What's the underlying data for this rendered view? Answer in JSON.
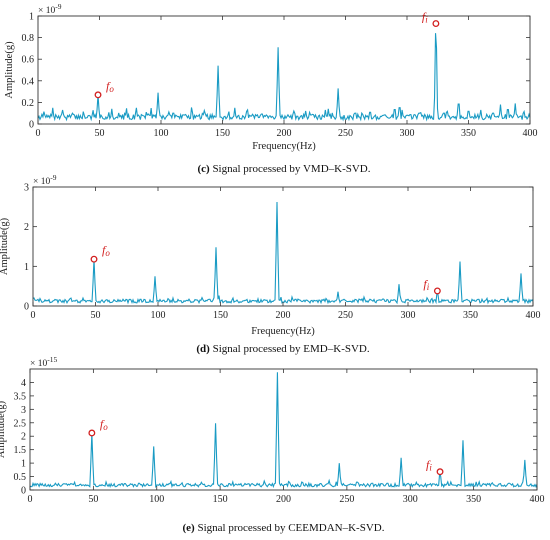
{
  "chart_data": [
    {
      "type": "line",
      "caption_tag": "(c)",
      "caption_text": " Signal processed by VMD–K-SVD.",
      "xlabel": "Frequency(Hz)",
      "ylabel": "Amplitude(g)",
      "exponent_base": "× 10",
      "exponent_power": "-9",
      "xlim": [
        0,
        400
      ],
      "ylim": [
        0,
        1
      ],
      "xticks": [
        0,
        50,
        100,
        150,
        200,
        250,
        300,
        350,
        400
      ],
      "yticks": [
        0,
        0.2,
        0.4,
        0.6,
        0.8,
        1
      ],
      "ytick_labels": [
        "0",
        "0.2",
        "0.4",
        "0.6",
        "0.8",
        "1"
      ],
      "line_color": "#1a9bc4",
      "baseline": 0.04,
      "noise": 0.05,
      "peaks": [
        [
          5,
          0.12
        ],
        [
          12,
          0.15
        ],
        [
          20,
          0.13
        ],
        [
          28,
          0.1
        ],
        [
          37,
          0.12
        ],
        [
          48.8,
          0.27
        ],
        [
          60,
          0.14
        ],
        [
          72,
          0.12
        ],
        [
          80,
          0.15
        ],
        [
          88,
          0.11
        ],
        [
          97.6,
          0.29
        ],
        [
          110,
          0.12
        ],
        [
          118,
          0.1
        ],
        [
          125,
          0.16
        ],
        [
          135,
          0.13
        ],
        [
          146.4,
          0.54
        ],
        [
          155,
          0.12
        ],
        [
          160,
          0.15
        ],
        [
          170,
          0.14
        ],
        [
          182,
          0.11
        ],
        [
          195.2,
          0.71
        ],
        [
          208,
          0.12
        ],
        [
          222,
          0.1
        ],
        [
          236,
          0.14
        ],
        [
          244,
          0.33
        ],
        [
          258,
          0.12
        ],
        [
          270,
          0.13
        ],
        [
          282,
          0.1
        ],
        [
          290,
          0.16
        ],
        [
          294,
          0.18
        ],
        [
          310,
          0.12
        ],
        [
          323.5,
          0.93
        ],
        [
          330,
          0.12
        ],
        [
          342,
          0.22
        ],
        [
          350,
          0.14
        ],
        [
          360,
          0.13
        ],
        [
          370,
          0.12
        ],
        [
          376,
          0.18
        ],
        [
          382,
          0.16
        ],
        [
          388,
          0.19
        ],
        [
          395,
          0.12
        ]
      ],
      "markers": [
        {
          "label": "fo",
          "x": 48.8,
          "y": 0.27
        },
        {
          "label": "fi",
          "x": 323.5,
          "y": 0.93
        }
      ],
      "seed": 7
    },
    {
      "type": "line",
      "caption_tag": "(d)",
      "caption_text": " Signal processed by EMD–K-SVD.",
      "xlabel": "Frequency(Hz)",
      "ylabel": "Amplitude(g)",
      "exponent_base": "× 10",
      "exponent_power": "-9",
      "xlim": [
        0,
        400
      ],
      "ylim": [
        0,
        3
      ],
      "xticks": [
        0,
        50,
        100,
        150,
        200,
        250,
        300,
        350,
        400
      ],
      "yticks": [
        0,
        1,
        2,
        3
      ],
      "ytick_labels": [
        "0",
        "1",
        "2",
        "3"
      ],
      "line_color": "#1a9bc4",
      "baseline": 0.08,
      "noise": 0.09,
      "peaks": [
        [
          30,
          0.22
        ],
        [
          40,
          0.2
        ],
        [
          48.8,
          1.18
        ],
        [
          58,
          0.15
        ],
        [
          72,
          0.17
        ],
        [
          86,
          0.2
        ],
        [
          97.6,
          0.75
        ],
        [
          112,
          0.2
        ],
        [
          125,
          0.18
        ],
        [
          135,
          0.22
        ],
        [
          146.4,
          1.48
        ],
        [
          160,
          0.2
        ],
        [
          170,
          0.17
        ],
        [
          180,
          0.18
        ],
        [
          195.2,
          2.62
        ],
        [
          210,
          0.2
        ],
        [
          225,
          0.15
        ],
        [
          244,
          0.36
        ],
        [
          262,
          0.15
        ],
        [
          280,
          0.18
        ],
        [
          292.8,
          0.55
        ],
        [
          310,
          0.18
        ],
        [
          323.5,
          0.38
        ],
        [
          332,
          0.15
        ],
        [
          341.6,
          1.12
        ],
        [
          355,
          0.15
        ],
        [
          370,
          0.13
        ],
        [
          380,
          0.2
        ],
        [
          390.4,
          0.82
        ]
      ],
      "markers": [
        {
          "label": "fo",
          "x": 48.8,
          "y": 1.18
        },
        {
          "label": "fi",
          "x": 323.5,
          "y": 0.38
        }
      ],
      "seed": 19
    },
    {
      "type": "line",
      "caption_tag": "(e)",
      "caption_text": " Signal processed by CEEMDAN–K-SVD.",
      "xlabel": "",
      "ylabel": "Amplitude(g)",
      "exponent_base": "× 10",
      "exponent_power": "-15",
      "xlim": [
        0,
        400
      ],
      "ylim": [
        0,
        4.5
      ],
      "xticks": [
        0,
        50,
        100,
        150,
        200,
        250,
        300,
        350,
        400
      ],
      "yticks": [
        0,
        0.5,
        1,
        1.5,
        2,
        2.5,
        3,
        3.5,
        4
      ],
      "ytick_labels": [
        "0",
        "0.5",
        "1",
        "1.5",
        "2",
        "2.5",
        "3",
        "3.5",
        "4"
      ],
      "line_color": "#1a9bc4",
      "baseline": 0.12,
      "noise": 0.12,
      "peaks": [
        [
          20,
          0.25
        ],
        [
          35,
          0.3
        ],
        [
          48.8,
          2.12
        ],
        [
          60,
          0.3
        ],
        [
          75,
          0.25
        ],
        [
          86,
          0.3
        ],
        [
          97.6,
          1.62
        ],
        [
          110,
          0.28
        ],
        [
          125,
          0.25
        ],
        [
          135,
          0.3
        ],
        [
          146.4,
          2.48
        ],
        [
          160,
          0.3
        ],
        [
          175,
          0.25
        ],
        [
          185,
          0.35
        ],
        [
          195.2,
          4.38
        ],
        [
          205,
          0.3
        ],
        [
          220,
          0.25
        ],
        [
          236,
          0.35
        ],
        [
          244,
          1.0
        ],
        [
          258,
          0.35
        ],
        [
          270,
          0.3
        ],
        [
          282,
          0.3
        ],
        [
          292.8,
          1.2
        ],
        [
          305,
          0.3
        ],
        [
          323.5,
          0.68
        ],
        [
          332,
          0.3
        ],
        [
          341.6,
          1.85
        ],
        [
          352,
          0.3
        ],
        [
          365,
          0.28
        ],
        [
          378,
          0.3
        ],
        [
          390.4,
          1.12
        ]
      ],
      "markers": [
        {
          "label": "fo",
          "x": 48.8,
          "y": 2.12
        },
        {
          "label": "fi",
          "x": 323.5,
          "y": 0.68
        }
      ],
      "seed": 31
    }
  ]
}
